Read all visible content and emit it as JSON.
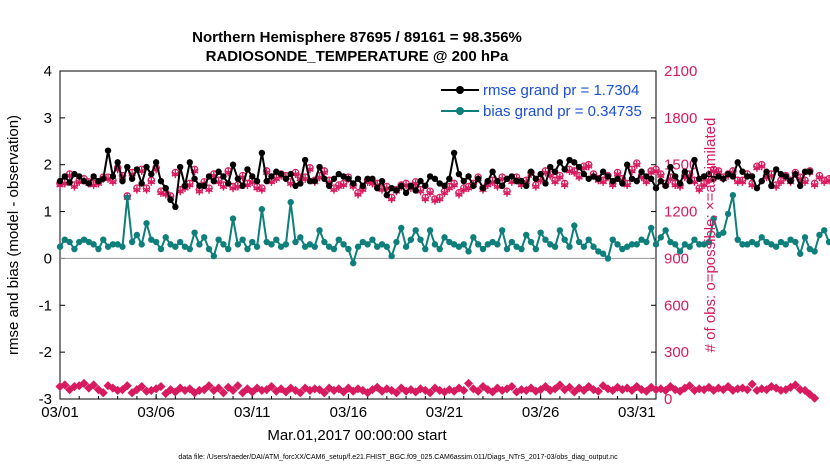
{
  "chart_data": {
    "type": "line",
    "title": "Northern Hemisphere 87695 / 89161 = 98.356%",
    "subtitle": "RADIOSONDE_TEMPERATURE @ 200 hPa",
    "ylabel": "rmse and bias (model - observation)",
    "y2label": "# of obs: o=possible; ×=assimilated",
    "xlabel": "Mar.01,2017 00:00:00 start",
    "footnote": "data file: /Users/raeder/DAI/ATM_forcXX/CAM6_setup/f.e21.FHIST_BGC.f09_025.CAM6assim.011/Diags_NTrS_2017-03/obs_diag_output.nc",
    "ylim": [
      -3,
      4
    ],
    "y2lim": [
      0,
      2100
    ],
    "xlim": [
      1,
      32
    ],
    "yticks": [
      "-3",
      "-2",
      "-1",
      "0",
      "1",
      "2",
      "3",
      "4"
    ],
    "y2ticks": [
      "0",
      "300",
      "600",
      "900",
      "1200",
      "1500",
      "1800",
      "2100"
    ],
    "xticks": [
      {
        "x": 1,
        "label": "03/01"
      },
      {
        "x": 6,
        "label": "03/06"
      },
      {
        "x": 11,
        "label": "03/11"
      },
      {
        "x": 16,
        "label": "03/16"
      },
      {
        "x": 21,
        "label": "03/21"
      },
      {
        "x": 26,
        "label": "03/26"
      },
      {
        "x": 31,
        "label": "03/31"
      }
    ],
    "legend": [
      "rmse grand pr = 1.7304",
      "bias grand pr = 0.34735"
    ],
    "legend_position": "top-right",
    "colors": {
      "rmse": "#000000",
      "bias": "#0e7f7a",
      "obs": "#d81b60",
      "zero_line": "#999999"
    },
    "time_step_days": 0.25,
    "series": [
      {
        "name": "rmse",
        "values": [
          1.65,
          1.75,
          1.62,
          1.8,
          1.75,
          1.65,
          1.6,
          1.75,
          1.65,
          1.7,
          2.3,
          1.75,
          2.05,
          1.65,
          1.95,
          1.7,
          1.9,
          1.6,
          1.95,
          1.8,
          2.05,
          1.65,
          1.5,
          1.25,
          1.1,
          1.95,
          1.55,
          2.05,
          1.7,
          1.55,
          1.55,
          1.75,
          1.65,
          1.85,
          1.75,
          1.6,
          2.0,
          1.7,
          1.55,
          1.9,
          1.75,
          1.65,
          2.25,
          1.65,
          1.75,
          1.85,
          1.8,
          1.7,
          1.8,
          1.55,
          1.6,
          2.1,
          1.65,
          1.65,
          1.95,
          1.7,
          1.55,
          1.7,
          1.8,
          1.75,
          1.7,
          1.6,
          1.7,
          1.55,
          1.7,
          1.7,
          1.5,
          1.65,
          1.35,
          1.5,
          1.45,
          1.55,
          1.4,
          1.55,
          1.45,
          1.65,
          1.55,
          1.75,
          1.7,
          1.6,
          1.55,
          1.7,
          2.25,
          1.8,
          1.65,
          1.75,
          1.55,
          1.7,
          1.5,
          1.65,
          1.85,
          1.65,
          1.55,
          1.7,
          1.75,
          1.65,
          1.65,
          1.55,
          1.85,
          1.7,
          1.8,
          1.6,
          1.95,
          1.85,
          2.05,
          1.9,
          2.1,
          2.05,
          1.95,
          1.8,
          1.7,
          1.75,
          1.7,
          1.85,
          1.75,
          1.65,
          1.7,
          1.6,
          2.0,
          1.7,
          1.65,
          1.85,
          1.75,
          1.7,
          1.5,
          1.65,
          1.55,
          1.95,
          1.75,
          1.6,
          1.85,
          1.65,
          2.1,
          1.7,
          1.75,
          1.8,
          1.7,
          1.75,
          1.7,
          1.8,
          1.75,
          2.05,
          1.85,
          1.75,
          1.75,
          1.5,
          1.65,
          1.85,
          1.55,
          1.9,
          1.8,
          1.75,
          1.65,
          1.8,
          1.55,
          1.85,
          1.85
        ]
      },
      {
        "name": "bias",
        "values": [
          0.25,
          0.4,
          0.35,
          0.2,
          0.35,
          0.4,
          0.35,
          0.3,
          0.2,
          0.4,
          0.25,
          0.3,
          0.3,
          0.25,
          1.3,
          0.35,
          0.5,
          0.3,
          0.75,
          0.4,
          0.35,
          0.2,
          0.45,
          0.3,
          0.25,
          0.35,
          0.25,
          0.2,
          0.55,
          0.3,
          0.45,
          0.2,
          0.05,
          0.4,
          0.3,
          0.2,
          0.85,
          0.3,
          0.4,
          0.2,
          0.35,
          0.25,
          1.05,
          0.35,
          0.3,
          0.4,
          0.25,
          0.3,
          1.2,
          0.35,
          0.45,
          0.25,
          0.3,
          0.25,
          0.6,
          0.35,
          0.25,
          0.2,
          0.4,
          0.3,
          0.2,
          -0.1,
          0.25,
          0.35,
          0.3,
          0.4,
          0.25,
          0.3,
          0.25,
          0.05,
          0.35,
          0.65,
          0.25,
          0.4,
          0.6,
          0.4,
          0.2,
          0.6,
          0.3,
          0.2,
          0.45,
          0.35,
          0.3,
          0.25,
          0.3,
          0.15,
          0.45,
          0.3,
          0.2,
          0.3,
          0.35,
          0.3,
          0.6,
          0.2,
          0.35,
          0.25,
          0.2,
          0.5,
          0.35,
          0.2,
          0.55,
          0.4,
          0.3,
          0.25,
          0.6,
          0.4,
          0.25,
          0.7,
          0.35,
          0.25,
          0.4,
          0.25,
          0.15,
          0.1,
          0.0,
          0.4,
          0.3,
          0.2,
          0.25,
          0.3,
          0.3,
          0.4,
          0.35,
          0.65,
          0.3,
          0.45,
          0.6,
          0.35,
          0.3,
          0.15,
          0.3,
          0.25,
          0.4,
          0.3,
          0.3,
          0.35,
          0.85,
          0.5,
          0.55,
          0.95,
          1.35,
          0.4,
          0.3,
          0.3,
          0.35,
          0.3,
          0.45,
          0.35,
          0.3,
          0.25,
          0.35,
          0.3,
          0.4,
          0.35,
          0.1,
          0.45,
          0.2,
          0.15,
          0.5,
          0.6,
          0.35,
          0.3,
          0.5,
          0.35,
          0.6,
          0.5,
          1.0
        ]
      },
      {
        "name": "obs_possible",
        "values": [
          1380,
          1390,
          1440,
          1370,
          1400,
          1410,
          1390,
          1380,
          1390,
          1420,
          1420,
          1400,
          1480,
          1430,
          1300,
          1450,
          1350,
          1470,
          1350,
          1400,
          1480,
          1330,
          1320,
          1300,
          1450,
          1340,
          1360,
          1380,
          1470,
          1340,
          1390,
          1350,
          1440,
          1400,
          1370,
          1460,
          1360,
          1370,
          1430,
          1380,
          1400,
          1360,
          1350,
          1460,
          1400,
          1420,
          1440,
          1430,
          1390,
          1450,
          1420,
          1420,
          1480,
          1400,
          1430,
          1460,
          1400,
          1350,
          1370,
          1380,
          1420,
          1370,
          1320,
          1350,
          1400,
          1390,
          1380,
          1350,
          1360,
          1290,
          1340,
          1370,
          1380,
          1360,
          1390,
          1340,
          1290,
          1330,
          1280,
          1290,
          1330,
          1360,
          1380,
          1320,
          1350,
          1360,
          1380,
          1420,
          1350,
          1380,
          1400,
          1370,
          1420,
          1330,
          1400,
          1420,
          1380,
          1400,
          1450,
          1370,
          1410,
          1460,
          1440,
          1400,
          1430,
          1380,
          1470,
          1460,
          1430,
          1490,
          1500,
          1440,
          1410,
          1400,
          1430,
          1380,
          1450,
          1410,
          1380,
          1470,
          1510,
          1430,
          1400,
          1460,
          1470,
          1440,
          1380,
          1420,
          1380,
          1370,
          1430,
          1440,
          1400,
          1350,
          1380,
          1410,
          1470,
          1460,
          1420,
          1440,
          1460,
          1400,
          1400,
          1440,
          1380,
          1490,
          1500,
          1430,
          1440,
          1370,
          1400,
          1430,
          1400,
          1450,
          1420,
          1400,
          1460,
          1380,
          1430,
          1400,
          1410,
          1400,
          1390,
          1440,
          1420
        ]
      },
      {
        "name": "obs_assimilated",
        "values": [
          1370,
          1380,
          1430,
          1360,
          1390,
          1400,
          1380,
          1370,
          1380,
          1410,
          1410,
          1390,
          1470,
          1420,
          1290,
          1440,
          1340,
          1460,
          1340,
          1390,
          1470,
          1320,
          1310,
          1290,
          1440,
          1330,
          1350,
          1370,
          1460,
          1330,
          1380,
          1340,
          1430,
          1390,
          1360,
          1450,
          1350,
          1360,
          1420,
          1370,
          1390,
          1350,
          1340,
          1450,
          1390,
          1410,
          1430,
          1420,
          1380,
          1440,
          1410,
          1410,
          1470,
          1390,
          1420,
          1450,
          1390,
          1340,
          1360,
          1370,
          1410,
          1360,
          1310,
          1340,
          1390,
          1380,
          1370,
          1340,
          1350,
          1280,
          1330,
          1360,
          1370,
          1350,
          1380,
          1330,
          1280,
          1320,
          1270,
          1280,
          1320,
          1350,
          1370,
          1310,
          1340,
          1350,
          1370,
          1410,
          1340,
          1370,
          1390,
          1360,
          1410,
          1320,
          1390,
          1410,
          1370,
          1390,
          1440,
          1360,
          1400,
          1450,
          1430,
          1390,
          1420,
          1370,
          1460,
          1450,
          1420,
          1480,
          1490,
          1430,
          1400,
          1390,
          1420,
          1370,
          1440,
          1400,
          1370,
          1460,
          1500,
          1420,
          1390,
          1450,
          1460,
          1430,
          1370,
          1410,
          1370,
          1360,
          1420,
          1430,
          1390,
          1340,
          1370,
          1400,
          1460,
          1450,
          1410,
          1430,
          1450,
          1390,
          1390,
          1430,
          1370,
          1480,
          1490,
          1420,
          1430,
          1360,
          1390,
          1420,
          1390,
          1440,
          1410,
          1390,
          1450,
          1370,
          1420,
          1390,
          1400,
          1390,
          1380,
          1430,
          1410
        ]
      },
      {
        "name": "obs_bottom_possible",
        "values": [
          80,
          90,
          60,
          80,
          85,
          100,
          70,
          90,
          60,
          40,
          85,
          70,
          55,
          60,
          85,
          40,
          60,
          80,
          50,
          55,
          65,
          80,
          35,
          60,
          45,
          70,
          55,
          65,
          40,
          55,
          60,
          85,
          55,
          70,
          40,
          75,
          55,
          85,
          40,
          65,
          45,
          70,
          55,
          60,
          80,
          50,
          65,
          45,
          70,
          55,
          40,
          70,
          55,
          65,
          60,
          40,
          70,
          55,
          65,
          45,
          70,
          50,
          65,
          55,
          40,
          60,
          75,
          50,
          65,
          55,
          40,
          70,
          50,
          60,
          45,
          65,
          55,
          40,
          70,
          55,
          45,
          60,
          50,
          70,
          55,
          100,
          65,
          50,
          80,
          60,
          45,
          70,
          55,
          65,
          80,
          45,
          60,
          55,
          70,
          50,
          60,
          80,
          55,
          65,
          90,
          60,
          75,
          45,
          70,
          55,
          80,
          60,
          50,
          85,
          65,
          55,
          75,
          60,
          70,
          55,
          80,
          60,
          50,
          75,
          60,
          65,
          55,
          80,
          60,
          50,
          70,
          85,
          55,
          65,
          60,
          75,
          55,
          70,
          60,
          80,
          55,
          65,
          70,
          60,
          95,
          55,
          65,
          60,
          80,
          70,
          55,
          60,
          75,
          90,
          60,
          55,
          30,
          5
        ]
      }
    ]
  }
}
